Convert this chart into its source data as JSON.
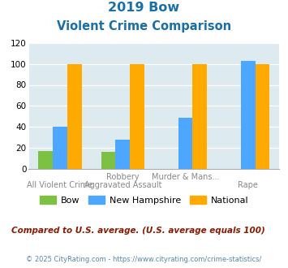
{
  "title_line1": "2019 Bow",
  "title_line2": "Violent Crime Comparison",
  "cat_top": [
    "",
    "Robbery",
    "Murder & Mans...",
    ""
  ],
  "cat_bottom": [
    "All Violent Crime",
    "Aggravated Assault",
    "",
    "Rape"
  ],
  "series": {
    "Bow": [
      17,
      16,
      0,
      0
    ],
    "New Hampshire": [
      40,
      28,
      49,
      103
    ],
    "National": [
      100,
      100,
      100,
      100
    ]
  },
  "colors": {
    "Bow": "#7dc142",
    "New Hampshire": "#4da6ff",
    "National": "#ffaa00"
  },
  "ylim": [
    0,
    120
  ],
  "yticks": [
    0,
    20,
    40,
    60,
    80,
    100,
    120
  ],
  "bg_color": "#ddeaef",
  "note": "Compared to U.S. average. (U.S. average equals 100)",
  "footer": "© 2025 CityRating.com - https://www.cityrating.com/crime-statistics/",
  "title_color": "#1a6fa8",
  "note_color": "#8b1a00",
  "footer_color": "#5588aa",
  "label_color": "#888888",
  "bar_width": 0.23,
  "group_positions": [
    0,
    1,
    2,
    3
  ]
}
